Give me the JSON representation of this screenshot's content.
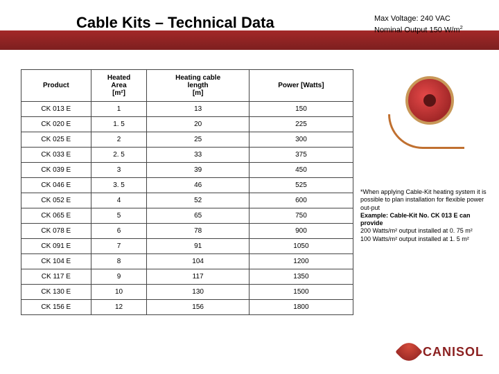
{
  "title": "Cable Kits – Technical Data",
  "topright": {
    "line1": "Max Voltage: 240 VAC",
    "line2_plain": "Nominal Output 150 W/m",
    "line2_sup": "2"
  },
  "table": {
    "headers": [
      "Product",
      "Heated\nArea\n[m²]",
      "Heating cable\nlength\n[m]",
      "Power [Watts]"
    ],
    "rows": [
      [
        "CK 013 E",
        "1",
        "13",
        "150"
      ],
      [
        "CK 020 E",
        "1. 5",
        "20",
        "225"
      ],
      [
        "CK 025 E",
        "2",
        "25",
        "300"
      ],
      [
        "CK 033 E",
        "2. 5",
        "33",
        "375"
      ],
      [
        "CK 039 E",
        "3",
        "39",
        "450"
      ],
      [
        "CK 046 E",
        "3. 5",
        "46",
        "525"
      ],
      [
        "CK 052 E",
        "4",
        "52",
        "600"
      ],
      [
        "CK 065 E",
        "5",
        "65",
        "750"
      ],
      [
        "CK 078 E",
        "6",
        "78",
        "900"
      ],
      [
        "CK 091 E",
        "7",
        "91",
        "1050"
      ],
      [
        "CK 104 E",
        "8",
        "104",
        "1200"
      ],
      [
        "CK 117 E",
        "9",
        "117",
        "1350"
      ],
      [
        "CK 130 E",
        "10",
        "130",
        "1500"
      ],
      [
        "CK 156 E",
        "12",
        "156",
        "1800"
      ]
    ]
  },
  "note": {
    "l1": "*When applying Cable-Kit heating system it is possible to plan installation for flexible power out-put",
    "l2": "Example: Cable-Kit No. CK 013 E can provide",
    "l3": "200 Watts/m² output installed at 0. 75 m²",
    "l4": "100 Watts/m² output installed at 1. 5 m²"
  },
  "logo_text": "CANISOL",
  "colors": {
    "brand": "#8b2020",
    "banner_top": "#a32828",
    "banner_bot": "#7d1f1f"
  }
}
